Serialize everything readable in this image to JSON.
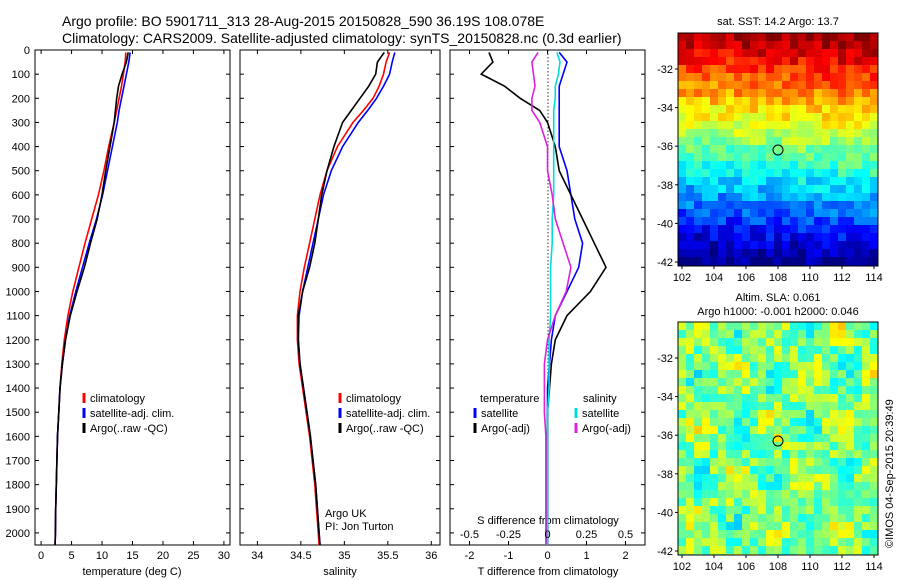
{
  "header": {
    "line1": "Argo profile: BO 5901711_313 28-Aug-2015 20150828_590 36.19S 108.078E",
    "line2": "Climatology: CARS2009. Satellite-adjusted climatology: synTS_20150828.nc (0.3d earlier)"
  },
  "colors": {
    "climatology": "#ff0000",
    "satellite": "#0000ff",
    "argo": "#000000",
    "sat_salinity": "#00dddd",
    "argo_salinity": "#dd22dd"
  },
  "panels": {
    "temperature": {
      "xlabel": "temperature (deg C)",
      "legend": [
        "climatology",
        "satellite-adj. clim.",
        "Argo(..raw -QC)"
      ]
    },
    "salinity": {
      "xlabel": "salinity",
      "legend": [
        "climatology",
        "satellite-adj. clim.",
        "Argo(..raw -QC)"
      ],
      "credit_line1": "Argo UK",
      "credit_line2": "PI: Jon Turton"
    },
    "difference": {
      "top_label": "S difference from climatology",
      "xlabel": "T difference from climatology",
      "legend_temp_title": "temperature",
      "legend_sal_title": "salinity",
      "legend_temp": [
        "satellite",
        "Argo(-adj)"
      ],
      "legend_sal": [
        "satellite",
        "Argo(-adj)"
      ]
    },
    "sst_map": {
      "title": "sat. SST: 14.2  Argo: 13.7",
      "xticks": [
        "102",
        "104",
        "106",
        "108",
        "110",
        "112",
        "114"
      ],
      "yticks": [
        "-32",
        "-34",
        "-36",
        "-38",
        "-40",
        "-42"
      ]
    },
    "sla_map": {
      "title1": "Altim. SLA: 0.061",
      "title2": "Argo h1000: -0.001 h2000: 0.046",
      "xticks": [
        "102",
        "104",
        "106",
        "108",
        "110",
        "112",
        "114"
      ],
      "yticks": [
        "-32",
        "-34",
        "-36",
        "-38",
        "-40",
        "-42"
      ]
    }
  },
  "footer": {
    "stamp": "©IMOS 04-Sep-2015 20:39:49"
  },
  "chart_data": [
    {
      "type": "line",
      "name": "temperature",
      "xlabel": "temperature (deg C)",
      "ylabel": "",
      "xlim": [
        -1,
        31
      ],
      "ylim": [
        2050,
        0
      ],
      "xticks": [
        0,
        5,
        10,
        15,
        20,
        25,
        30
      ],
      "yticks": [
        0,
        100,
        200,
        300,
        400,
        500,
        600,
        700,
        800,
        900,
        1000,
        1100,
        1200,
        1300,
        1400,
        1500,
        1600,
        1700,
        1800,
        1900,
        2000
      ],
      "depth": [
        10,
        50,
        100,
        150,
        200,
        250,
        300,
        400,
        500,
        600,
        700,
        800,
        900,
        1000,
        1100,
        1200,
        1300,
        1400,
        1500,
        1600,
        1700,
        1800,
        1900,
        2000,
        2050
      ],
      "series": [
        {
          "name": "climatology",
          "color": "#ff0000",
          "values": [
            13.9,
            13.8,
            13.5,
            13.2,
            12.8,
            12.4,
            12.0,
            11.1,
            10.3,
            9.4,
            8.3,
            7.2,
            6.2,
            5.2,
            4.4,
            3.8,
            3.4,
            3.1,
            2.9,
            2.7,
            2.6,
            2.5,
            2.4,
            2.35,
            2.3
          ]
        },
        {
          "name": "satellite-adj. clim.",
          "color": "#0000ff",
          "values": [
            14.6,
            14.4,
            14.0,
            13.6,
            13.2,
            12.8,
            12.5,
            11.7,
            10.9,
            10.1,
            9.1,
            7.9,
            6.8,
            5.7,
            4.7,
            4.0,
            3.5,
            3.1,
            2.9,
            2.7,
            2.6,
            2.5,
            2.4,
            2.35,
            2.3
          ]
        },
        {
          "name": "Argo(..raw -QC)",
          "color": "#000000",
          "values": [
            14.3,
            14.0,
            13.3,
            12.7,
            12.4,
            12.2,
            12.0,
            11.3,
            10.6,
            10.0,
            9.2,
            8.1,
            7.1,
            5.9,
            4.8,
            4.0,
            3.5,
            3.1,
            2.9,
            2.7,
            2.6,
            2.5,
            2.4,
            2.35,
            2.3
          ]
        }
      ]
    },
    {
      "type": "line",
      "name": "salinity",
      "xlabel": "salinity",
      "ylabel": "",
      "xlim": [
        33.8,
        36.1
      ],
      "ylim": [
        2050,
        0
      ],
      "xticks": [
        34,
        34.5,
        35,
        35.5,
        36
      ],
      "depth": [
        10,
        50,
        100,
        150,
        200,
        250,
        300,
        400,
        500,
        600,
        700,
        800,
        900,
        1000,
        1100,
        1200,
        1300,
        1400,
        1500,
        1600,
        1700,
        1800,
        1900,
        2000,
        2050
      ],
      "series": [
        {
          "name": "climatology",
          "color": "#ff0000",
          "values": [
            35.52,
            35.48,
            35.45,
            35.4,
            35.33,
            35.22,
            35.1,
            34.92,
            34.8,
            34.72,
            34.66,
            34.6,
            34.54,
            34.49,
            34.46,
            34.46,
            34.48,
            34.52,
            34.56,
            34.6,
            34.63,
            34.66,
            34.68,
            34.7,
            34.71
          ]
        },
        {
          "name": "satellite-adj. clim.",
          "color": "#0000ff",
          "values": [
            35.58,
            35.55,
            35.52,
            35.45,
            35.37,
            35.27,
            35.16,
            34.98,
            34.85,
            34.76,
            34.7,
            34.64,
            34.58,
            34.52,
            34.48,
            34.47,
            34.49,
            34.53,
            34.57,
            34.61,
            34.64,
            34.67,
            34.69,
            34.71,
            34.72
          ]
        },
        {
          "name": "Argo(..raw -QC)",
          "color": "#000000",
          "values": [
            35.46,
            35.38,
            35.36,
            35.28,
            35.18,
            35.08,
            34.98,
            34.88,
            34.8,
            34.74,
            34.7,
            34.66,
            34.6,
            34.52,
            34.47,
            34.47,
            34.49,
            34.53,
            34.57,
            34.61,
            34.64,
            34.67,
            34.69,
            34.71,
            34.72
          ]
        }
      ]
    },
    {
      "type": "line",
      "name": "difference from climatology",
      "xlabel": "T difference from climatology",
      "top_label": "S difference from climatology",
      "xlim": [
        -2.5,
        2.5
      ],
      "ylim": [
        2050,
        0
      ],
      "xticks_T": [
        -2,
        -1,
        0,
        1,
        2
      ],
      "xticks_S": [
        -0.5,
        -0.25,
        0,
        0.25,
        0.5
      ],
      "depth": [
        10,
        50,
        100,
        150,
        200,
        250,
        300,
        400,
        500,
        600,
        700,
        800,
        900,
        1000,
        1100,
        1200,
        1300,
        1400,
        1500,
        1600,
        1700,
        1800,
        1900,
        2000,
        2050
      ],
      "series": [
        {
          "name": "temperature satellite",
          "color": "#0000ff",
          "values": [
            0.3,
            0.5,
            0.4,
            0.3,
            0.3,
            0.3,
            0.3,
            0.3,
            0.5,
            0.6,
            0.7,
            0.9,
            0.8,
            0.5,
            0.2,
            0.1,
            0.05,
            0.0,
            0.0,
            0.0,
            0.0,
            0.0,
            0.0,
            0.0,
            0.0
          ]
        },
        {
          "name": "temperature Argo(-adj)",
          "color": "#000000",
          "values": [
            -1.5,
            -1.4,
            -1.7,
            -1.1,
            -0.7,
            -0.2,
            0.0,
            0.2,
            0.3,
            0.6,
            0.9,
            1.2,
            1.5,
            1.1,
            0.5,
            0.2,
            0.1,
            0.05,
            0.0,
            0.0,
            0.0,
            0.0,
            0.0,
            0.0,
            0.0
          ]
        },
        {
          "name": "salinity satellite",
          "color": "#00dddd",
          "values": [
            0.06,
            0.08,
            0.07,
            0.05,
            0.05,
            0.04,
            0.04,
            0.04,
            0.04,
            0.04,
            0.03,
            0.03,
            0.02,
            0.02,
            0.02,
            0.01,
            0.01,
            0.01,
            0.0,
            0.0,
            0.0,
            0.0,
            0.0,
            0.0,
            0.0
          ]
        },
        {
          "name": "salinity Argo(-adj)",
          "color": "#dd22dd",
          "values": [
            -0.06,
            -0.1,
            -0.09,
            -0.08,
            -0.1,
            -0.1,
            -0.05,
            0.0,
            0.0,
            0.03,
            0.05,
            0.1,
            0.15,
            0.12,
            0.05,
            0.0,
            -0.02,
            -0.02,
            -0.02,
            -0.01,
            -0.01,
            -0.01,
            -0.01,
            -0.01,
            -0.01
          ]
        }
      ]
    }
  ]
}
